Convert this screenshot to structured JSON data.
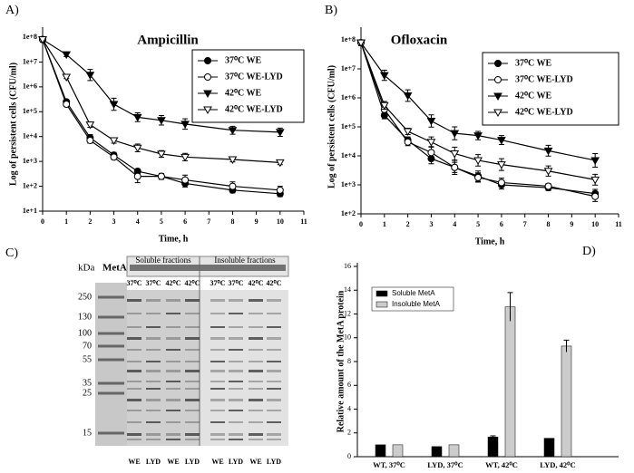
{
  "chart_data": [
    {
      "type": "line",
      "label": "A)",
      "title": "Ampicillin",
      "x_label": "Time, h",
      "y_label": "Log of persistent cells (CFU/ml)",
      "x": [
        0,
        1,
        2,
        3,
        4,
        5,
        6,
        8,
        10
      ],
      "xlim": [
        0,
        11
      ],
      "xticks": [
        0,
        1,
        2,
        3,
        4,
        5,
        6,
        7,
        8,
        9,
        10,
        11
      ],
      "log_y": true,
      "ylim": [
        10,
        100000000
      ],
      "yticks": [
        {
          "value": 10,
          "label": "1e+1"
        },
        {
          "value": 100,
          "label": "1e+2"
        },
        {
          "value": 1000,
          "label": "1e+3"
        },
        {
          "value": 10000,
          "label": "1e+4"
        },
        {
          "value": 100000,
          "label": "1e+5"
        },
        {
          "value": 1000000,
          "label": "1e+6"
        },
        {
          "value": 10000000,
          "label": "1e+7"
        },
        {
          "value": 100000000,
          "label": "1e+8"
        }
      ],
      "legend": "upper right",
      "series": [
        {
          "name": "37⁰C WE",
          "color": "#000000",
          "marker": "circle",
          "filled": true,
          "values": [
            80000000,
            250000,
            9000,
            1800,
            400,
            250,
            130,
            70,
            50
          ],
          "errors": [
            20000000,
            50000,
            3000,
            500,
            100,
            50,
            50,
            20,
            15
          ]
        },
        {
          "name": "37⁰C WE-LYD",
          "color": "#000000",
          "marker": "circle",
          "filled": false,
          "values": [
            80000000,
            200000,
            7000,
            1500,
            250,
            250,
            180,
            100,
            70
          ],
          "errors": [
            20000000,
            50000,
            2000,
            400,
            200,
            80,
            100,
            50,
            30
          ]
        },
        {
          "name": "42⁰C WE",
          "color": "#000000",
          "marker": "triangle-down",
          "filled": true,
          "values": [
            80000000,
            20000000,
            3000000,
            200000,
            60000,
            45000,
            32000,
            18000,
            15000
          ],
          "errors": [
            20000000,
            4000000,
            2000000,
            150000,
            30000,
            25000,
            20000,
            8000,
            7000
          ]
        },
        {
          "name": "42⁰C WE-LYD",
          "color": "#000000",
          "marker": "triangle-down",
          "filled": false,
          "values": [
            80000000,
            2500000,
            30000,
            7000,
            3500,
            2000,
            1500,
            1200,
            900
          ],
          "errors": [
            20000000,
            400000,
            8000,
            2000,
            1500,
            700,
            600,
            300,
            200
          ]
        }
      ]
    },
    {
      "type": "line",
      "label": "B)",
      "title": "Ofloxacin",
      "x_label": "Time, h",
      "y_label": "Log of persistent cells (CFU/ml)",
      "x": [
        0,
        1,
        2,
        3,
        4,
        5,
        6,
        8,
        10
      ],
      "xlim": [
        0,
        11
      ],
      "xticks": [
        0,
        1,
        2,
        3,
        4,
        5,
        6,
        7,
        8,
        9,
        10,
        11
      ],
      "log_y": true,
      "ylim": [
        100,
        100000000
      ],
      "yticks": [
        {
          "value": 100,
          "label": "1e+2"
        },
        {
          "value": 1000,
          "label": "1e+3"
        },
        {
          "value": 10000,
          "label": "1e+4"
        },
        {
          "value": 100000,
          "label": "1e+5"
        },
        {
          "value": 1000000,
          "label": "1e+6"
        },
        {
          "value": 10000000,
          "label": "1e+7"
        },
        {
          "value": 100000000,
          "label": "1e+8"
        }
      ],
      "legend": "upper right",
      "series": [
        {
          "name": "37⁰C  WE",
          "color": "#000000",
          "marker": "circle",
          "filled": true,
          "values": [
            80000000,
            250000,
            35000,
            8000,
            4000,
            2000,
            1000,
            800,
            500
          ],
          "errors": [
            20000000,
            80000,
            10000,
            4000,
            3000,
            1000,
            400,
            200,
            200
          ]
        },
        {
          "name": "37⁰C  WE-LYD",
          "color": "#000000",
          "marker": "circle",
          "filled": false,
          "values": [
            80000000,
            400000,
            30000,
            13000,
            4000,
            1800,
            1200,
            900,
            400
          ],
          "errors": [
            20000000,
            150000,
            10000,
            8000,
            2000,
            800,
            500,
            200,
            200
          ]
        },
        {
          "name": "42⁰C WE",
          "color": "#000000",
          "marker": "triangle-down",
          "filled": true,
          "values": [
            80000000,
            6000000,
            1200000,
            160000,
            60000,
            50000,
            35000,
            15000,
            7000
          ],
          "errors": [
            20000000,
            3000000,
            700000,
            100000,
            40000,
            20000,
            15000,
            8000,
            5000
          ]
        },
        {
          "name": "42⁰C WE-LYD",
          "color": "#000000",
          "marker": "triangle-down",
          "filled": false,
          "values": [
            80000000,
            550000,
            70000,
            30000,
            12000,
            7000,
            5000,
            3000,
            1500
          ],
          "errors": [
            20000000,
            200000,
            20000,
            15000,
            8000,
            4000,
            3000,
            1500,
            800
          ]
        }
      ]
    },
    {
      "type": "bar",
      "label": "D)",
      "y_label": "Relative amount of the MetA protein",
      "categories": [
        "WT, 37⁰C",
        "LYD, 37⁰C",
        "WT, 42⁰C",
        "LYD, 42⁰C"
      ],
      "ylim": [
        0,
        16
      ],
      "yticks": [
        0,
        2,
        4,
        6,
        8,
        10,
        12,
        14,
        16
      ],
      "legend": "upper left",
      "series": [
        {
          "name": "Soluble MetA",
          "color": "#000000",
          "values": [
            1,
            0.85,
            1.65,
            1.55
          ],
          "errors": [
            0,
            0,
            0.1,
            0
          ]
        },
        {
          "name": "Insoluble MetA",
          "color": "#cccccc",
          "values": [
            1,
            1,
            12.6,
            9.3
          ],
          "errors": [
            0,
            0,
            1.2,
            0.5
          ]
        }
      ]
    }
  ],
  "gel": {
    "label": "C)",
    "unit": "kDa",
    "marker_lane": "MetA",
    "ladder": [
      "250",
      "130",
      "100",
      "70",
      "55",
      "35",
      "25",
      "15"
    ],
    "groups": [
      "Soluble fractions",
      "Insoluble fractions"
    ],
    "temps": [
      "37⁰C",
      "37⁰C",
      "42⁰C",
      "42⁰C",
      "37⁰C",
      "37⁰C",
      "42⁰C",
      "42⁰C"
    ],
    "strains": [
      "WE",
      "LYD",
      "WE",
      "LYD",
      "WE",
      "LYD",
      "WE",
      "LYD"
    ]
  }
}
